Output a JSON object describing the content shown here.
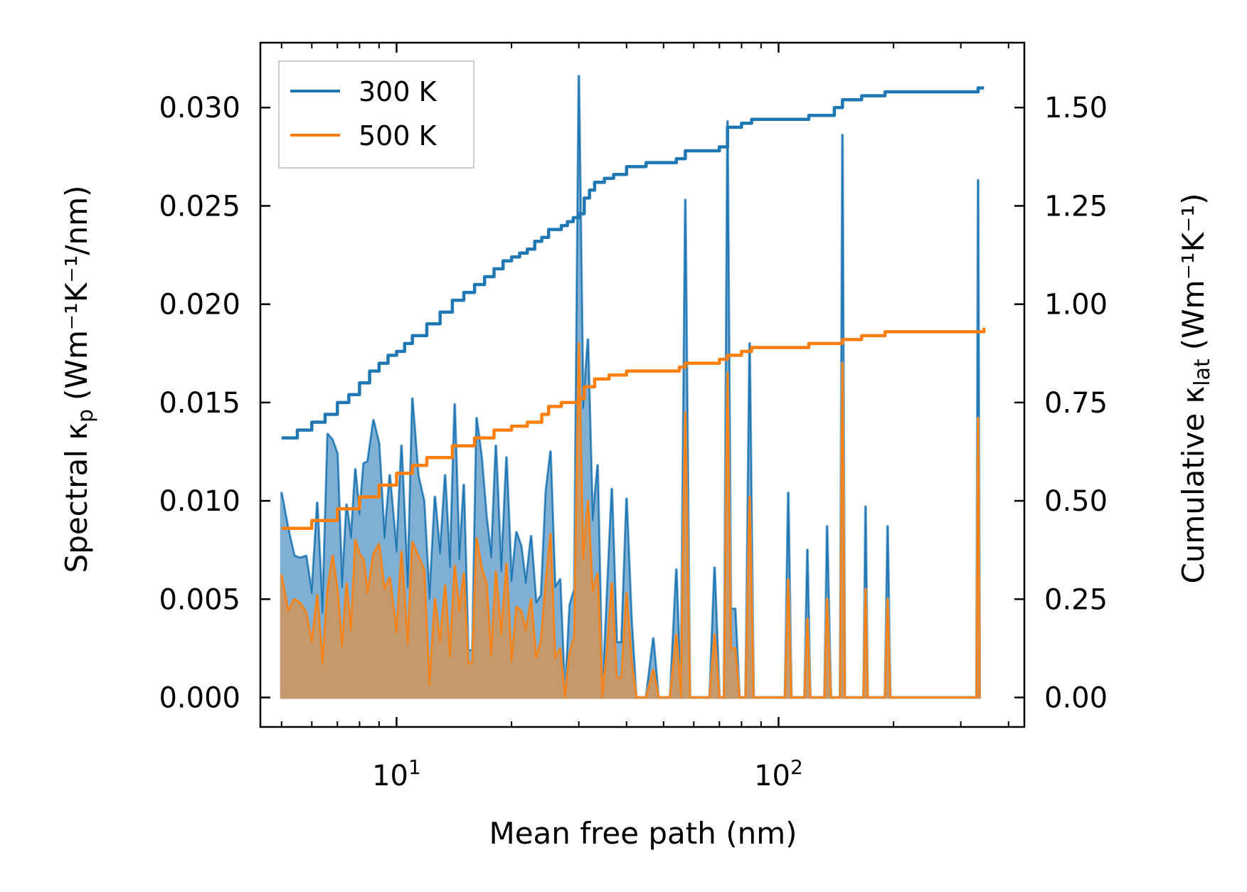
{
  "chart_data": {
    "type": "line",
    "xscale": "log",
    "xlabel": "Mean free path (nm)",
    "ylabel_left": {
      "main": "Spectral κ",
      "sub": "p",
      "unit": "(Wm⁻¹K⁻¹/nm)"
    },
    "ylabel_right": {
      "main": "Cumulative κ",
      "sub": "lat",
      "unit": "(Wm⁻¹K⁻¹)"
    },
    "xlim": [
      4.4,
      440
    ],
    "ylim_left": [
      -0.0015,
      0.0333
    ],
    "ylim_right": [
      -0.075,
      1.665
    ],
    "x_ticks": [
      {
        "value": 10,
        "base": "10",
        "exp": "1"
      },
      {
        "value": 100,
        "base": "10",
        "exp": "2"
      }
    ],
    "y_ticks_left": [
      "0.000",
      "0.005",
      "0.010",
      "0.015",
      "0.020",
      "0.025",
      "0.030"
    ],
    "y_ticks_right": [
      "0.00",
      "0.25",
      "0.50",
      "0.75",
      "1.00",
      "1.25",
      "1.50"
    ],
    "legend": {
      "position": "top-left",
      "entries": [
        "300 K",
        "500 K"
      ]
    },
    "colors": {
      "s300": "#1f77b4",
      "s500": "#ff7f0e",
      "fill300": "#7fafd3",
      "fill500": "#c49a6c"
    },
    "spectral_300": [
      [
        5.0,
        0.0104
      ],
      [
        5.2,
        0.0086
      ],
      [
        5.4,
        0.0072
      ],
      [
        5.6,
        0.0071
      ],
      [
        5.8,
        0.0072
      ],
      [
        6.0,
        0.0053
      ],
      [
        6.2,
        0.0099
      ],
      [
        6.4,
        0.0043
      ],
      [
        6.6,
        0.0134
      ],
      [
        6.8,
        0.0131
      ],
      [
        7.0,
        0.0124
      ],
      [
        7.2,
        0.0056
      ],
      [
        7.4,
        0.0098
      ],
      [
        7.6,
        0.0081
      ],
      [
        7.8,
        0.0116
      ],
      [
        8.0,
        0.0093
      ],
      [
        8.2,
        0.0119
      ],
      [
        8.4,
        0.012
      ],
      [
        8.7,
        0.0141
      ],
      [
        9.0,
        0.0129
      ],
      [
        9.3,
        0.0081
      ],
      [
        9.6,
        0.0113
      ],
      [
        10.0,
        0.0074
      ],
      [
        10.3,
        0.0128
      ],
      [
        10.7,
        0.0056
      ],
      [
        11.0,
        0.0152
      ],
      [
        11.4,
        0.0113
      ],
      [
        11.8,
        0.01
      ],
      [
        12.2,
        0.005
      ],
      [
        12.6,
        0.0102
      ],
      [
        13.0,
        0.0073
      ],
      [
        13.4,
        0.0113
      ],
      [
        13.8,
        0.0066
      ],
      [
        14.2,
        0.0149
      ],
      [
        14.6,
        0.007
      ],
      [
        15.0,
        0.0108
      ],
      [
        15.4,
        0.0024
      ],
      [
        15.8,
        0.0024
      ],
      [
        16.2,
        0.0142
      ],
      [
        16.7,
        0.0122
      ],
      [
        17.2,
        0.0092
      ],
      [
        17.7,
        0.0071
      ],
      [
        18.2,
        0.0128
      ],
      [
        18.8,
        0.0064
      ],
      [
        19.4,
        0.0122
      ],
      [
        20.0,
        0.0059
      ],
      [
        20.6,
        0.0084
      ],
      [
        21.2,
        0.0077
      ],
      [
        21.8,
        0.0058
      ],
      [
        22.5,
        0.0082
      ],
      [
        23.2,
        0.0048
      ],
      [
        23.9,
        0.0052
      ],
      [
        24.6,
        0.0105
      ],
      [
        25.3,
        0.0125
      ],
      [
        26.0,
        0.0056
      ],
      [
        26.8,
        0.006
      ],
      [
        27.6,
        0.0
      ],
      [
        28.4,
        0.0047
      ],
      [
        29.2,
        0.0055
      ],
      [
        30.0,
        0.0316
      ],
      [
        30.8,
        0.0147
      ],
      [
        31.7,
        0.0182
      ],
      [
        32.6,
        0.009
      ],
      [
        33.6,
        0.0118
      ],
      [
        34.6,
        0.0
      ],
      [
        35.6,
        0.0054
      ],
      [
        36.6,
        0.0106
      ],
      [
        37.7,
        0.0028
      ],
      [
        38.8,
        0.0028
      ],
      [
        40.0,
        0.0101
      ],
      [
        41.2,
        0.004
      ],
      [
        42.4,
        0.0
      ],
      [
        45.0,
        0.0
      ],
      [
        47.0,
        0.003
      ],
      [
        48.5,
        0.0
      ],
      [
        52.0,
        0.0
      ],
      [
        54.0,
        0.0065
      ],
      [
        55.5,
        0.0
      ],
      [
        57.0,
        0.0253
      ],
      [
        58.6,
        0.0
      ],
      [
        66.0,
        0.0
      ],
      [
        68.0,
        0.0066
      ],
      [
        70.0,
        0.0
      ],
      [
        72.0,
        0.0
      ],
      [
        73.5,
        0.0293
      ],
      [
        75.0,
        0.0045
      ],
      [
        77.0,
        0.0045
      ],
      [
        79.0,
        0.0
      ],
      [
        82.0,
        0.0
      ],
      [
        84.0,
        0.018
      ],
      [
        86.0,
        0.0
      ],
      [
        104.0,
        0.0
      ],
      [
        106.0,
        0.0104
      ],
      [
        108.0,
        0.0
      ],
      [
        117.0,
        0.0
      ],
      [
        119.0,
        0.0075
      ],
      [
        121.0,
        0.0
      ],
      [
        132.0,
        0.0
      ],
      [
        134.0,
        0.0087
      ],
      [
        137.0,
        0.0
      ],
      [
        145.0,
        0.0
      ],
      [
        147.0,
        0.0286
      ],
      [
        149.0,
        0.0
      ],
      [
        167.0,
        0.0
      ],
      [
        169.0,
        0.0097
      ],
      [
        171.0,
        0.0
      ],
      [
        190.0,
        0.0
      ],
      [
        193.0,
        0.0087
      ],
      [
        196.0,
        0.0
      ],
      [
        330.0,
        0.0
      ],
      [
        333.0,
        0.0263
      ],
      [
        336.0,
        0.0
      ]
    ],
    "spectral_500": [
      [
        5.0,
        0.0062
      ],
      [
        5.2,
        0.0044
      ],
      [
        5.4,
        0.005
      ],
      [
        5.6,
        0.0048
      ],
      [
        5.8,
        0.0043
      ],
      [
        6.0,
        0.0028
      ],
      [
        6.2,
        0.0052
      ],
      [
        6.4,
        0.0017
      ],
      [
        6.6,
        0.0055
      ],
      [
        6.8,
        0.0072
      ],
      [
        7.0,
        0.0055
      ],
      [
        7.2,
        0.0026
      ],
      [
        7.4,
        0.0058
      ],
      [
        7.6,
        0.0034
      ],
      [
        7.8,
        0.008
      ],
      [
        8.0,
        0.0073
      ],
      [
        8.2,
        0.007
      ],
      [
        8.4,
        0.0053
      ],
      [
        8.7,
        0.0073
      ],
      [
        9.0,
        0.0078
      ],
      [
        9.3,
        0.0055
      ],
      [
        9.6,
        0.0061
      ],
      [
        10.0,
        0.0033
      ],
      [
        10.3,
        0.0074
      ],
      [
        10.7,
        0.0027
      ],
      [
        11.0,
        0.0079
      ],
      [
        11.4,
        0.0072
      ],
      [
        11.8,
        0.0065
      ],
      [
        12.2,
        0.0006
      ],
      [
        12.6,
        0.005
      ],
      [
        13.0,
        0.0028
      ],
      [
        13.4,
        0.0057
      ],
      [
        13.8,
        0.0021
      ],
      [
        14.2,
        0.0067
      ],
      [
        14.6,
        0.0044
      ],
      [
        15.0,
        0.0063
      ],
      [
        15.4,
        0.0017
      ],
      [
        15.8,
        0.0018
      ],
      [
        16.2,
        0.0081
      ],
      [
        16.7,
        0.0066
      ],
      [
        17.2,
        0.0058
      ],
      [
        17.7,
        0.0021
      ],
      [
        18.2,
        0.0064
      ],
      [
        18.8,
        0.0032
      ],
      [
        19.4,
        0.0068
      ],
      [
        20.0,
        0.0018
      ],
      [
        20.6,
        0.0046
      ],
      [
        21.2,
        0.0044
      ],
      [
        21.8,
        0.0034
      ],
      [
        22.5,
        0.005
      ],
      [
        23.2,
        0.002
      ],
      [
        23.9,
        0.0029
      ],
      [
        24.6,
        0.0059
      ],
      [
        25.3,
        0.0083
      ],
      [
        26.0,
        0.002
      ],
      [
        26.8,
        0.0025
      ],
      [
        27.6,
        0.0
      ],
      [
        28.4,
        0.0023
      ],
      [
        29.2,
        0.0031
      ],
      [
        30.0,
        0.018
      ],
      [
        30.8,
        0.007
      ],
      [
        31.7,
        0.01
      ],
      [
        32.6,
        0.0054
      ],
      [
        33.6,
        0.0063
      ],
      [
        34.6,
        0.0
      ],
      [
        35.6,
        0.0025
      ],
      [
        36.6,
        0.0058
      ],
      [
        37.7,
        0.001
      ],
      [
        38.8,
        0.001
      ],
      [
        40.0,
        0.0053
      ],
      [
        41.2,
        0.0019
      ],
      [
        42.4,
        0.0
      ],
      [
        45.0,
        0.0
      ],
      [
        47.0,
        0.0014
      ],
      [
        48.5,
        0.0
      ],
      [
        52.0,
        0.0
      ],
      [
        54.0,
        0.0032
      ],
      [
        55.5,
        0.0
      ],
      [
        57.0,
        0.0145
      ],
      [
        58.6,
        0.0
      ],
      [
        66.0,
        0.0
      ],
      [
        68.0,
        0.0032
      ],
      [
        70.0,
        0.0
      ],
      [
        72.0,
        0.0
      ],
      [
        73.5,
        0.0165
      ],
      [
        75.0,
        0.0025
      ],
      [
        77.0,
        0.0025
      ],
      [
        79.0,
        0.0
      ],
      [
        82.0,
        0.0
      ],
      [
        84.0,
        0.0102
      ],
      [
        86.0,
        0.0
      ],
      [
        104.0,
        0.0
      ],
      [
        106.0,
        0.006
      ],
      [
        108.0,
        0.0
      ],
      [
        117.0,
        0.0
      ],
      [
        119.0,
        0.004
      ],
      [
        121.0,
        0.0
      ],
      [
        132.0,
        0.0
      ],
      [
        134.0,
        0.005
      ],
      [
        137.0,
        0.0
      ],
      [
        145.0,
        0.0
      ],
      [
        147.0,
        0.017
      ],
      [
        149.0,
        0.0
      ],
      [
        167.0,
        0.0
      ],
      [
        169.0,
        0.0055
      ],
      [
        171.0,
        0.0
      ],
      [
        190.0,
        0.0
      ],
      [
        193.0,
        0.005
      ],
      [
        196.0,
        0.0
      ],
      [
        330.0,
        0.0
      ],
      [
        333.0,
        0.0142
      ],
      [
        336.0,
        0.0
      ]
    ],
    "cumulative_300": [
      [
        5.0,
        0.66
      ],
      [
        5.5,
        0.68
      ],
      [
        6.0,
        0.7
      ],
      [
        6.5,
        0.72
      ],
      [
        7.0,
        0.75
      ],
      [
        7.5,
        0.77
      ],
      [
        8.0,
        0.8
      ],
      [
        8.5,
        0.83
      ],
      [
        9.0,
        0.85
      ],
      [
        9.5,
        0.87
      ],
      [
        10.0,
        0.88
      ],
      [
        10.5,
        0.9
      ],
      [
        11.0,
        0.92
      ],
      [
        12.0,
        0.95
      ],
      [
        13.0,
        0.98
      ],
      [
        14.0,
        1.01
      ],
      [
        15.0,
        1.03
      ],
      [
        16.0,
        1.05
      ],
      [
        17.0,
        1.07
      ],
      [
        18.0,
        1.09
      ],
      [
        19.0,
        1.11
      ],
      [
        20.0,
        1.12
      ],
      [
        21.0,
        1.13
      ],
      [
        22.0,
        1.14
      ],
      [
        23.0,
        1.16
      ],
      [
        24.0,
        1.17
      ],
      [
        25.0,
        1.19
      ],
      [
        27.0,
        1.2
      ],
      [
        28.0,
        1.21
      ],
      [
        29.0,
        1.22
      ],
      [
        30.0,
        1.23
      ],
      [
        31.0,
        1.27
      ],
      [
        32.0,
        1.29
      ],
      [
        33.0,
        1.31
      ],
      [
        35.0,
        1.32
      ],
      [
        37.0,
        1.33
      ],
      [
        40.0,
        1.35
      ],
      [
        45.0,
        1.36
      ],
      [
        50.0,
        1.36
      ],
      [
        54.0,
        1.37
      ],
      [
        57.0,
        1.39
      ],
      [
        60.0,
        1.39
      ],
      [
        70.0,
        1.4
      ],
      [
        73.5,
        1.45
      ],
      [
        78.0,
        1.45
      ],
      [
        80.0,
        1.46
      ],
      [
        85.0,
        1.47
      ],
      [
        100.0,
        1.47
      ],
      [
        120.0,
        1.48
      ],
      [
        140.0,
        1.5
      ],
      [
        147.0,
        1.52
      ],
      [
        165.0,
        1.53
      ],
      [
        190.0,
        1.54
      ],
      [
        250.0,
        1.54
      ],
      [
        325.0,
        1.54
      ],
      [
        333.0,
        1.55
      ],
      [
        345.0,
        1.55
      ]
    ],
    "cumulative_500": [
      [
        5.0,
        0.43
      ],
      [
        6.0,
        0.45
      ],
      [
        7.0,
        0.48
      ],
      [
        8.0,
        0.51
      ],
      [
        9.0,
        0.54
      ],
      [
        10.0,
        0.57
      ],
      [
        11.0,
        0.59
      ],
      [
        12.0,
        0.61
      ],
      [
        14.0,
        0.64
      ],
      [
        16.0,
        0.66
      ],
      [
        18.0,
        0.68
      ],
      [
        20.0,
        0.69
      ],
      [
        22.0,
        0.7
      ],
      [
        24.0,
        0.72
      ],
      [
        25.0,
        0.74
      ],
      [
        27.0,
        0.75
      ],
      [
        30.0,
        0.76
      ],
      [
        31.0,
        0.79
      ],
      [
        33.0,
        0.81
      ],
      [
        36.0,
        0.82
      ],
      [
        40.0,
        0.83
      ],
      [
        45.0,
        0.83
      ],
      [
        55.0,
        0.84
      ],
      [
        57.0,
        0.85
      ],
      [
        70.0,
        0.86
      ],
      [
        73.5,
        0.87
      ],
      [
        80.0,
        0.88
      ],
      [
        85.0,
        0.89
      ],
      [
        100.0,
        0.89
      ],
      [
        120.0,
        0.9
      ],
      [
        140.0,
        0.9
      ],
      [
        147.0,
        0.91
      ],
      [
        165.0,
        0.92
      ],
      [
        190.0,
        0.93
      ],
      [
        250.0,
        0.93
      ],
      [
        330.0,
        0.93
      ],
      [
        345.0,
        0.94
      ]
    ]
  }
}
